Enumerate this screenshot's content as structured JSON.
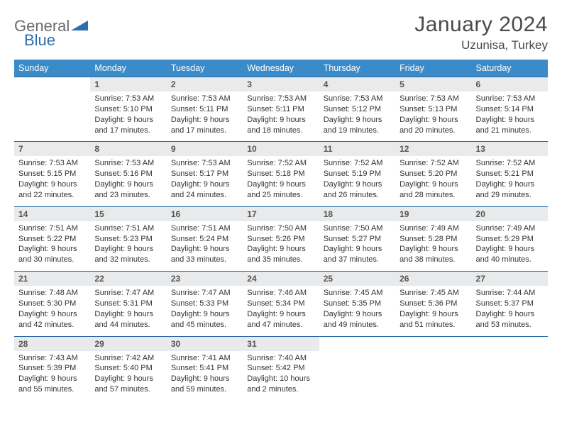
{
  "logo": {
    "part1": "General",
    "part2": "Blue"
  },
  "title": "January 2024",
  "location": "Uzunisa, Turkey",
  "header_bg": "#3b8bc8",
  "border_color": "#2a6aa5",
  "daynum_bg": "#e9eaeb",
  "weekdays": [
    "Sunday",
    "Monday",
    "Tuesday",
    "Wednesday",
    "Thursday",
    "Friday",
    "Saturday"
  ],
  "weeks": [
    [
      null,
      {
        "n": "1",
        "sr": "7:53 AM",
        "ss": "5:10 PM",
        "dl": "9 hours and 17 minutes."
      },
      {
        "n": "2",
        "sr": "7:53 AM",
        "ss": "5:11 PM",
        "dl": "9 hours and 17 minutes."
      },
      {
        "n": "3",
        "sr": "7:53 AM",
        "ss": "5:11 PM",
        "dl": "9 hours and 18 minutes."
      },
      {
        "n": "4",
        "sr": "7:53 AM",
        "ss": "5:12 PM",
        "dl": "9 hours and 19 minutes."
      },
      {
        "n": "5",
        "sr": "7:53 AM",
        "ss": "5:13 PM",
        "dl": "9 hours and 20 minutes."
      },
      {
        "n": "6",
        "sr": "7:53 AM",
        "ss": "5:14 PM",
        "dl": "9 hours and 21 minutes."
      }
    ],
    [
      {
        "n": "7",
        "sr": "7:53 AM",
        "ss": "5:15 PM",
        "dl": "9 hours and 22 minutes."
      },
      {
        "n": "8",
        "sr": "7:53 AM",
        "ss": "5:16 PM",
        "dl": "9 hours and 23 minutes."
      },
      {
        "n": "9",
        "sr": "7:53 AM",
        "ss": "5:17 PM",
        "dl": "9 hours and 24 minutes."
      },
      {
        "n": "10",
        "sr": "7:52 AM",
        "ss": "5:18 PM",
        "dl": "9 hours and 25 minutes."
      },
      {
        "n": "11",
        "sr": "7:52 AM",
        "ss": "5:19 PM",
        "dl": "9 hours and 26 minutes."
      },
      {
        "n": "12",
        "sr": "7:52 AM",
        "ss": "5:20 PM",
        "dl": "9 hours and 28 minutes."
      },
      {
        "n": "13",
        "sr": "7:52 AM",
        "ss": "5:21 PM",
        "dl": "9 hours and 29 minutes."
      }
    ],
    [
      {
        "n": "14",
        "sr": "7:51 AM",
        "ss": "5:22 PM",
        "dl": "9 hours and 30 minutes."
      },
      {
        "n": "15",
        "sr": "7:51 AM",
        "ss": "5:23 PM",
        "dl": "9 hours and 32 minutes."
      },
      {
        "n": "16",
        "sr": "7:51 AM",
        "ss": "5:24 PM",
        "dl": "9 hours and 33 minutes."
      },
      {
        "n": "17",
        "sr": "7:50 AM",
        "ss": "5:26 PM",
        "dl": "9 hours and 35 minutes."
      },
      {
        "n": "18",
        "sr": "7:50 AM",
        "ss": "5:27 PM",
        "dl": "9 hours and 37 minutes."
      },
      {
        "n": "19",
        "sr": "7:49 AM",
        "ss": "5:28 PM",
        "dl": "9 hours and 38 minutes."
      },
      {
        "n": "20",
        "sr": "7:49 AM",
        "ss": "5:29 PM",
        "dl": "9 hours and 40 minutes."
      }
    ],
    [
      {
        "n": "21",
        "sr": "7:48 AM",
        "ss": "5:30 PM",
        "dl": "9 hours and 42 minutes."
      },
      {
        "n": "22",
        "sr": "7:47 AM",
        "ss": "5:31 PM",
        "dl": "9 hours and 44 minutes."
      },
      {
        "n": "23",
        "sr": "7:47 AM",
        "ss": "5:33 PM",
        "dl": "9 hours and 45 minutes."
      },
      {
        "n": "24",
        "sr": "7:46 AM",
        "ss": "5:34 PM",
        "dl": "9 hours and 47 minutes."
      },
      {
        "n": "25",
        "sr": "7:45 AM",
        "ss": "5:35 PM",
        "dl": "9 hours and 49 minutes."
      },
      {
        "n": "26",
        "sr": "7:45 AM",
        "ss": "5:36 PM",
        "dl": "9 hours and 51 minutes."
      },
      {
        "n": "27",
        "sr": "7:44 AM",
        "ss": "5:37 PM",
        "dl": "9 hours and 53 minutes."
      }
    ],
    [
      {
        "n": "28",
        "sr": "7:43 AM",
        "ss": "5:39 PM",
        "dl": "9 hours and 55 minutes."
      },
      {
        "n": "29",
        "sr": "7:42 AM",
        "ss": "5:40 PM",
        "dl": "9 hours and 57 minutes."
      },
      {
        "n": "30",
        "sr": "7:41 AM",
        "ss": "5:41 PM",
        "dl": "9 hours and 59 minutes."
      },
      {
        "n": "31",
        "sr": "7:40 AM",
        "ss": "5:42 PM",
        "dl": "10 hours and 2 minutes."
      },
      null,
      null,
      null
    ]
  ],
  "labels": {
    "sunrise": "Sunrise:",
    "sunset": "Sunset:",
    "daylight": "Daylight:"
  }
}
